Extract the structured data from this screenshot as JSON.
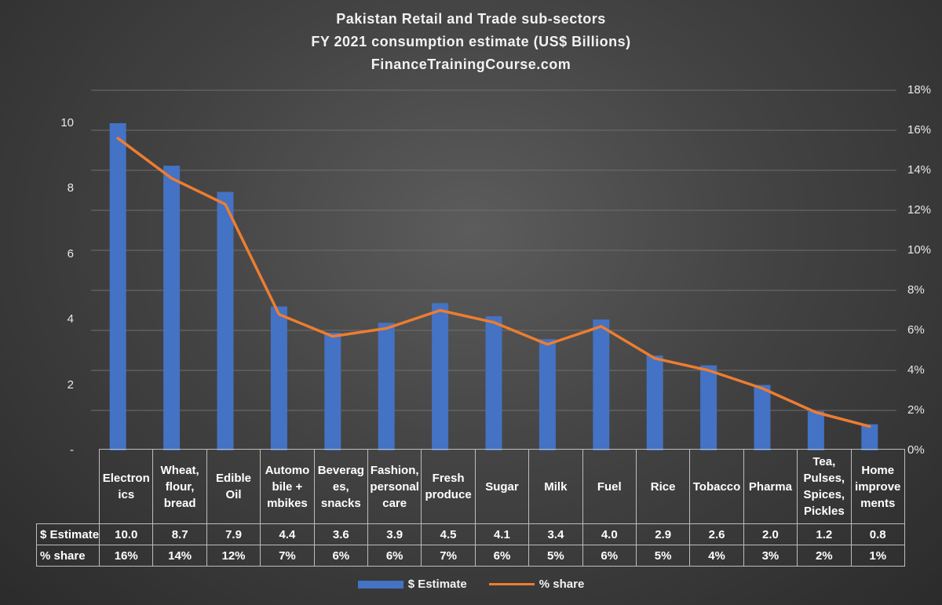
{
  "chart_data": {
    "type": "bar",
    "title_lines": [
      "Pakistan Retail and Trade sub-sectors",
      "FY 2021 consumption estimate (US$ Billions)",
      "FinanceTrainingCourse.com"
    ],
    "categories": [
      "Electronics",
      "Wheat, flour, bread",
      "Edible Oil",
      "Automobile + mbikes",
      "Beverages, snacks",
      "Fashion, personal care",
      "Fresh produce",
      "Sugar",
      "Milk",
      "Fuel",
      "Rice",
      "Tobacco",
      "Pharma",
      "Tea, Pulses, Spices, Pickles",
      "Home improvements"
    ],
    "category_display": [
      [
        "Electron",
        "ics"
      ],
      [
        "Wheat,",
        "flour,",
        "bread"
      ],
      [
        "Edible",
        "Oil"
      ],
      [
        "Automo",
        "bile +",
        "mbikes"
      ],
      [
        "Beverag",
        "es,",
        "snacks"
      ],
      [
        "Fashion,",
        "personal",
        "care"
      ],
      [
        "Fresh",
        "produce"
      ],
      [
        "Sugar"
      ],
      [
        "Milk"
      ],
      [
        "Fuel"
      ],
      [
        "Rice"
      ],
      [
        "Tobacco"
      ],
      [
        "Pharma"
      ],
      [
        "Tea,",
        "Pulses,",
        "Spices,",
        "Pickles"
      ],
      [
        "Home",
        "improve",
        "ments"
      ]
    ],
    "series": [
      {
        "name": "$ Estimate",
        "type": "bar",
        "axis": "left",
        "color": "#4472c4",
        "values": [
          10.0,
          8.7,
          7.9,
          4.4,
          3.6,
          3.9,
          4.5,
          4.1,
          3.4,
          4.0,
          2.9,
          2.6,
          2.0,
          1.2,
          0.8
        ],
        "labels": [
          "10.0",
          "8.7",
          "7.9",
          "4.4",
          "3.6",
          "3.9",
          "4.5",
          "4.1",
          "3.4",
          "4.0",
          "2.9",
          "2.6",
          "2.0",
          "1.2",
          "0.8"
        ]
      },
      {
        "name": "% share",
        "type": "line",
        "axis": "right",
        "color": "#ed7d31",
        "values": [
          15.6,
          13.6,
          12.3,
          6.8,
          5.7,
          6.1,
          7.0,
          6.4,
          5.3,
          6.2,
          4.6,
          4.0,
          3.1,
          1.9,
          1.2
        ],
        "labels": [
          "16%",
          "14%",
          "12%",
          "7%",
          "6%",
          "6%",
          "7%",
          "6%",
          "5%",
          "6%",
          "5%",
          "4%",
          "3%",
          "2%",
          "1%"
        ]
      }
    ],
    "y_left": {
      "min": 0,
      "max": 11,
      "ticks": [
        0,
        2,
        4,
        6,
        8,
        10
      ],
      "tick_labels": [
        "-",
        "2",
        "4",
        "6",
        "8",
        "10"
      ]
    },
    "y_right": {
      "min": 0,
      "max": 18,
      "ticks": [
        0,
        2,
        4,
        6,
        8,
        10,
        12,
        14,
        16,
        18
      ],
      "tick_labels": [
        "0%",
        "2%",
        "4%",
        "6%",
        "8%",
        "10%",
        "12%",
        "14%",
        "16%",
        "18%"
      ]
    },
    "gridlines": true,
    "legend_position": "bottom",
    "data_table": true
  }
}
